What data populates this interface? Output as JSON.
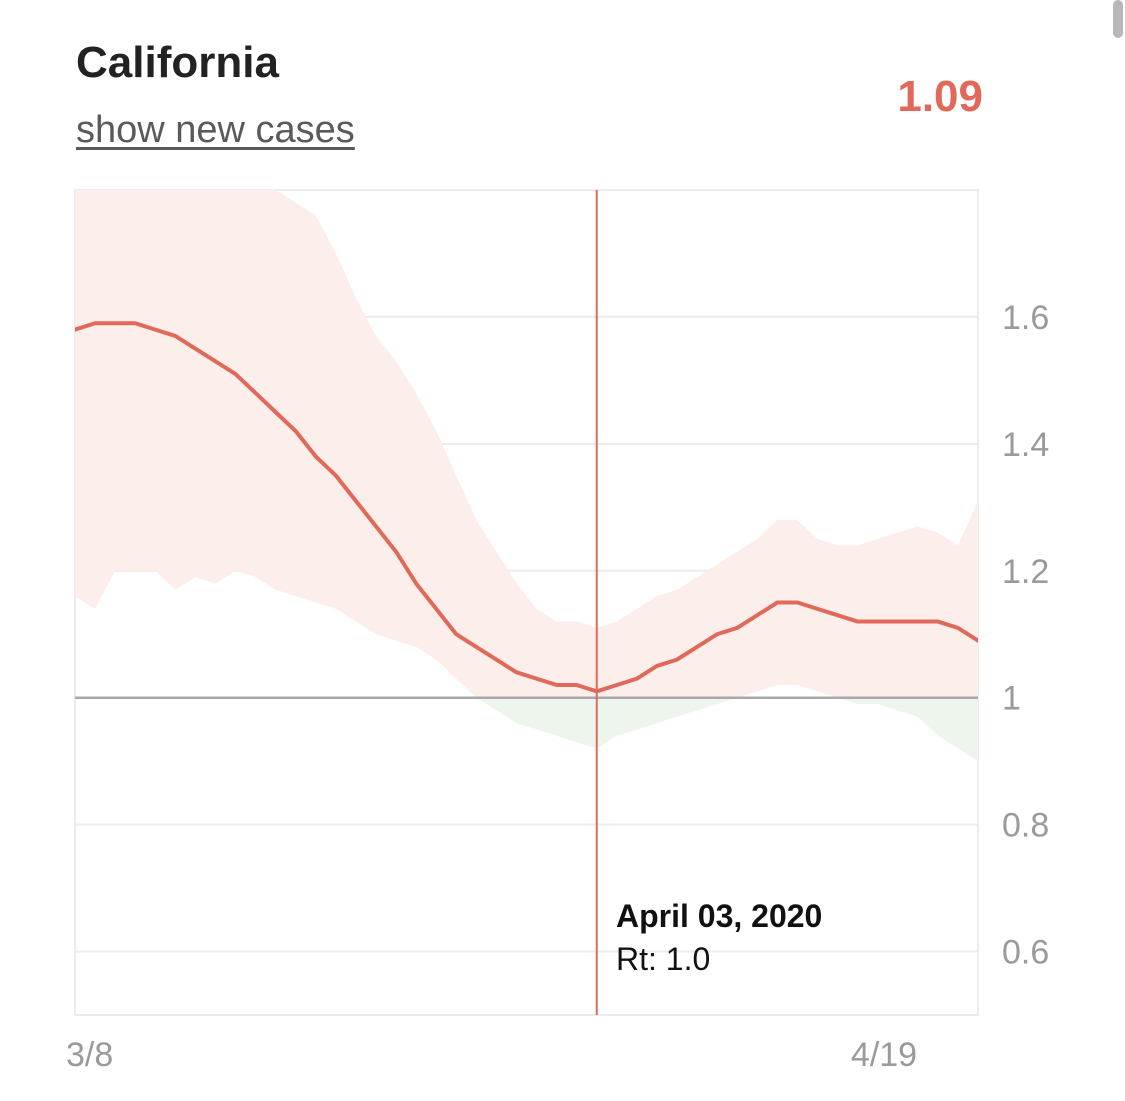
{
  "header": {
    "title": "California",
    "toggle_label": "show new cases",
    "current_rt": "1.09"
  },
  "tooltip": {
    "date": "April 03, 2020",
    "label": "Rt: 1.0"
  },
  "colors": {
    "line": "#e0695a",
    "band_above": "#fceeeb",
    "band_below": "#edf5ec",
    "reference": "#a8a8a8",
    "grid": "#ececec",
    "cursor": "#e0695a"
  },
  "chart_data": {
    "type": "line",
    "title": "",
    "xlabel": "",
    "ylabel": "",
    "x_tick_labels": [
      "3/8",
      "4/19"
    ],
    "y_ticks": [
      0.6,
      0.8,
      1,
      1.2,
      1.4,
      1.6
    ],
    "y_tick_labels": [
      "0.6",
      "0.8",
      "1",
      "1.2",
      "1.4",
      "1.6"
    ],
    "ylim": [
      0.5,
      1.8
    ],
    "xlim": [
      "2020-03-08",
      "2020-04-22"
    ],
    "reference_line": 1,
    "grid": "horizontal",
    "cursor_date": "2020-04-03",
    "series": [
      {
        "kind": "line",
        "x": [
          "2020-03-08",
          "2020-03-09",
          "2020-03-10",
          "2020-03-11",
          "2020-03-12",
          "2020-03-13",
          "2020-03-14",
          "2020-03-15",
          "2020-03-16",
          "2020-03-17",
          "2020-03-18",
          "2020-03-19",
          "2020-03-20",
          "2020-03-21",
          "2020-03-22",
          "2020-03-23",
          "2020-03-24",
          "2020-03-25",
          "2020-03-26",
          "2020-03-27",
          "2020-03-28",
          "2020-03-29",
          "2020-03-30",
          "2020-03-31",
          "2020-04-01",
          "2020-04-02",
          "2020-04-03",
          "2020-04-04",
          "2020-04-05",
          "2020-04-06",
          "2020-04-07",
          "2020-04-08",
          "2020-04-09",
          "2020-04-10",
          "2020-04-11",
          "2020-04-12",
          "2020-04-13",
          "2020-04-14",
          "2020-04-15",
          "2020-04-16",
          "2020-04-17",
          "2020-04-18",
          "2020-04-19",
          "2020-04-20",
          "2020-04-21",
          "2020-04-22"
        ],
        "values": [
          1.58,
          1.59,
          1.59,
          1.59,
          1.58,
          1.57,
          1.55,
          1.53,
          1.51,
          1.48,
          1.45,
          1.42,
          1.38,
          1.35,
          1.31,
          1.27,
          1.23,
          1.18,
          1.14,
          1.1,
          1.08,
          1.06,
          1.04,
          1.03,
          1.02,
          1.02,
          1.01,
          1.02,
          1.03,
          1.05,
          1.06,
          1.08,
          1.1,
          1.11,
          1.13,
          1.15,
          1.15,
          1.14,
          1.13,
          1.12,
          1.12,
          1.12,
          1.12,
          1.12,
          1.11,
          1.09
        ]
      },
      {
        "kind": "band",
        "x": [
          "2020-03-08",
          "2020-03-09",
          "2020-03-10",
          "2020-03-11",
          "2020-03-12",
          "2020-03-13",
          "2020-03-14",
          "2020-03-15",
          "2020-03-16",
          "2020-03-17",
          "2020-03-18",
          "2020-03-19",
          "2020-03-20",
          "2020-03-21",
          "2020-03-22",
          "2020-03-23",
          "2020-03-24",
          "2020-03-25",
          "2020-03-26",
          "2020-03-27",
          "2020-03-28",
          "2020-03-29",
          "2020-03-30",
          "2020-03-31",
          "2020-04-01",
          "2020-04-02",
          "2020-04-03",
          "2020-04-04",
          "2020-04-05",
          "2020-04-06",
          "2020-04-07",
          "2020-04-08",
          "2020-04-09",
          "2020-04-10",
          "2020-04-11",
          "2020-04-12",
          "2020-04-13",
          "2020-04-14",
          "2020-04-15",
          "2020-04-16",
          "2020-04-17",
          "2020-04-18",
          "2020-04-19",
          "2020-04-20",
          "2020-04-21",
          "2020-04-22"
        ],
        "upper": [
          1.8,
          1.8,
          1.8,
          1.8,
          1.8,
          1.8,
          1.8,
          1.8,
          1.8,
          1.8,
          1.8,
          1.78,
          1.76,
          1.7,
          1.63,
          1.57,
          1.53,
          1.48,
          1.42,
          1.35,
          1.28,
          1.23,
          1.18,
          1.14,
          1.12,
          1.12,
          1.11,
          1.12,
          1.14,
          1.16,
          1.17,
          1.19,
          1.21,
          1.23,
          1.25,
          1.28,
          1.28,
          1.25,
          1.24,
          1.24,
          1.25,
          1.26,
          1.27,
          1.26,
          1.24,
          1.31
        ],
        "lower": [
          1.16,
          1.14,
          1.2,
          1.2,
          1.2,
          1.17,
          1.19,
          1.18,
          1.2,
          1.19,
          1.17,
          1.16,
          1.15,
          1.14,
          1.12,
          1.1,
          1.09,
          1.08,
          1.06,
          1.03,
          1.0,
          0.98,
          0.96,
          0.95,
          0.94,
          0.93,
          0.92,
          0.94,
          0.95,
          0.96,
          0.97,
          0.98,
          0.99,
          1.0,
          1.01,
          1.02,
          1.02,
          1.01,
          1.0,
          0.99,
          0.99,
          0.98,
          0.97,
          0.94,
          0.92,
          0.9
        ]
      }
    ]
  }
}
